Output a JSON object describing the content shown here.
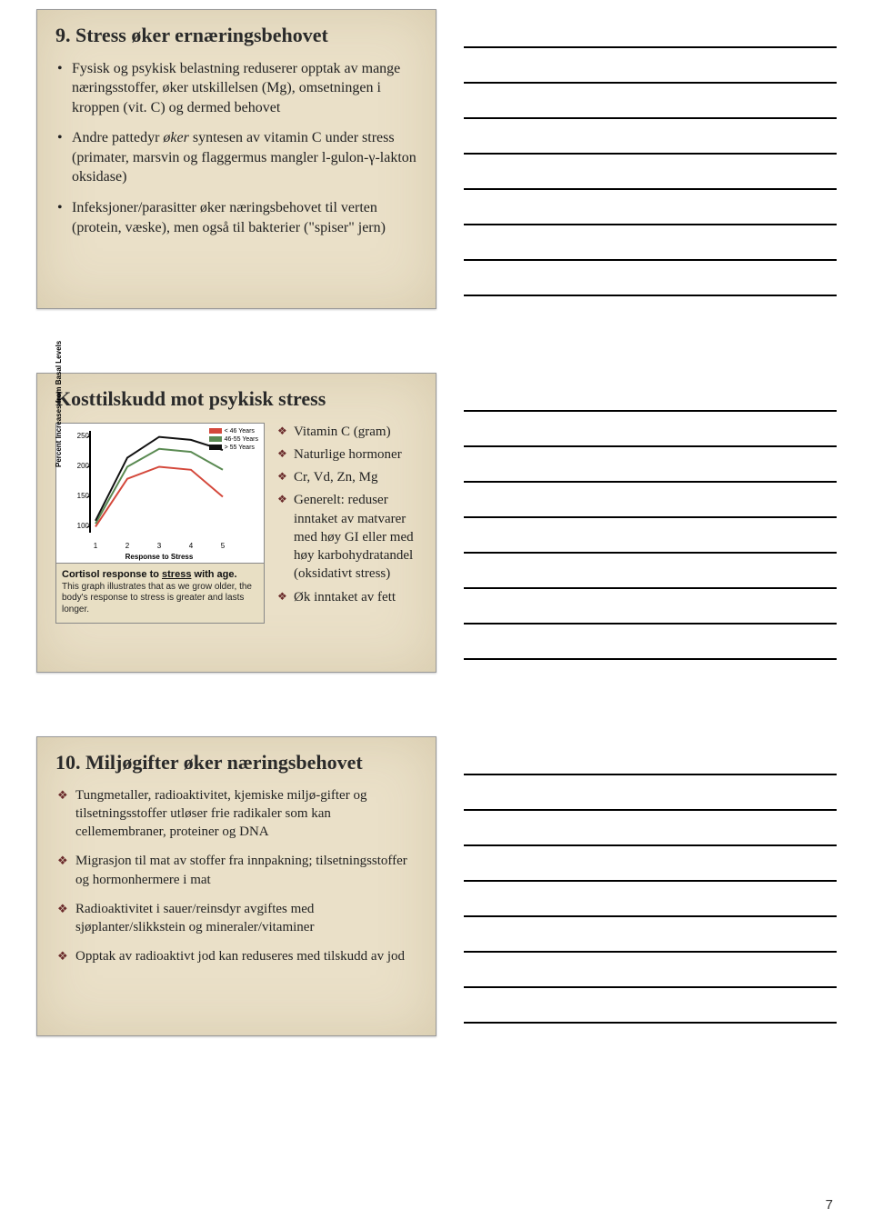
{
  "page_number": "7",
  "note_lines_per_block": 8,
  "slide1": {
    "title": "9. Stress øker ernæringsbehovet",
    "bullets": [
      "Fysisk og psykisk belastning reduserer opptak av mange næringsstoffer, øker utskillelsen (Mg), omsetningen i kroppen (vit. C) og dermed behovet",
      "Andre pattedyr øker syntesen av vitamin C under stress (primater, marsvin og flaggermus mangler l-gulon-γ-lakton oksidase)",
      "Infeksjoner/parasitter øker næringsbehovet til verten (protein, væske), men også til bakterier (\"spiser\" jern)"
    ]
  },
  "slide2": {
    "title": "Kosttilskudd mot psykisk stress",
    "chart": {
      "type": "line",
      "ylabel": "Percent Increases from Basal Levels",
      "xlabel": "Response to Stress",
      "x_ticks": [
        1,
        2,
        3,
        4,
        5
      ],
      "y_ticks": [
        100,
        150,
        200,
        250
      ],
      "ylim": [
        90,
        260
      ],
      "series": [
        {
          "label": "< 46 Years",
          "color": "#d4483b",
          "values": [
            100,
            180,
            200,
            195,
            150
          ]
        },
        {
          "label": "46-55 Years",
          "color": "#5a8a52",
          "values": [
            105,
            200,
            230,
            225,
            195
          ]
        },
        {
          "label": "> 55 Years",
          "color": "#111111",
          "values": [
            110,
            215,
            250,
            245,
            228
          ]
        }
      ],
      "background_color": "#ffffff",
      "axis_fontsize": 8,
      "line_width": 2
    },
    "chart_caption_title": "Cortisol response to stress with age.",
    "chart_caption_text": "This graph illustrates that as we grow older, the body's response to stress is greater and lasts longer.",
    "bullets": [
      "Vitamin C (gram)",
      "Naturlige hormoner",
      "Cr, Vd, Zn, Mg",
      "Generelt: reduser inntaket av matvarer med høy GI eller med høy karbohydratandel (oksidativt stress)",
      "Øk inntaket av fett"
    ]
  },
  "slide3": {
    "title": "10. Miljøgifter øker næringsbehovet",
    "bullets": [
      "Tungmetaller, radioaktivitet, kjemiske miljø-gifter og tilsetningsstoffer utløser frie radikaler som kan cellemembraner, proteiner og DNA",
      "Migrasjon til mat av stoffer fra innpakning; tilsetningsstoffer og hormonhermere i mat",
      "Radioaktivitet i sauer/reinsdyr avgiftes med sjøplanter/slikkstein og mineraler/vitaminer",
      "Opptak av radioaktivt jod kan reduseres med tilskudd av jod"
    ]
  }
}
